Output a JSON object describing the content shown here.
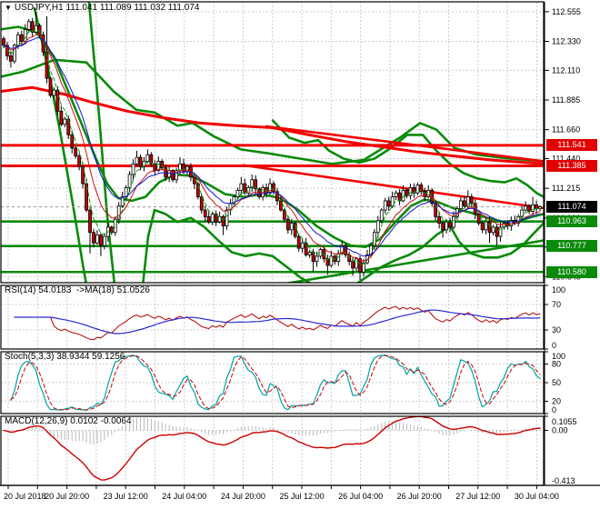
{
  "chart_data": {
    "type": "candlestick",
    "title": {
      "symbol": "USDJPY,H1",
      "o": "111.041",
      "h": "111.089",
      "l": "111.032",
      "c": "111.074"
    },
    "x_labels": [
      "20 Jul 2018",
      "20 Jul 20:00",
      "23 Jul 12:00",
      "24 Jul 04:00",
      "24 Jul 20:00",
      "25 Jul 12:00",
      "26 Jul 04:00",
      "26 Jul 20:00",
      "27 Jul 12:00",
      "30 Jul 04:00"
    ],
    "price_axis": {
      "max": 112.63,
      "min": 110.499,
      "tick_values": [
        112.555,
        112.33,
        112.11,
        111.885,
        111.66,
        111.44,
        111.215,
        110.99,
        110.77,
        110.545
      ],
      "tick_labels": [
        "112.555",
        "112.330",
        "112.110",
        "111.885",
        "111.660",
        "111.440",
        "111.215",
        "110.990",
        "110.770",
        "110.545"
      ]
    },
    "badges": [
      {
        "label": "111.541",
        "value": 111.541,
        "bg": "#e00000"
      },
      {
        "label": "111.385",
        "value": 111.385,
        "bg": "#e00000"
      },
      {
        "label": "111.074",
        "value": 111.074,
        "bg": "#000000"
      },
      {
        "label": "110.963",
        "value": 110.963,
        "bg": "#0a8a0a"
      },
      {
        "label": "110.777",
        "value": 110.777,
        "bg": "#0a8a0a"
      },
      {
        "label": "110.580",
        "value": 110.58,
        "bg": "#0a8a0a"
      }
    ],
    "levels": {
      "resistance": [
        111.541,
        111.385
      ],
      "support": [
        110.963,
        110.777,
        110.58
      ],
      "current_price": 111.074
    },
    "candles": {
      "open0": 112.35,
      "closes": [
        112.3,
        112.22,
        112.18,
        112.3,
        112.38,
        112.33,
        112.42,
        112.48,
        112.4,
        112.45,
        112.38,
        112.25,
        112.05,
        111.92,
        111.96,
        111.8,
        111.7,
        111.74,
        111.62,
        111.52,
        111.46,
        111.38,
        111.25,
        111.05,
        110.88,
        110.8,
        110.86,
        110.78,
        110.85,
        110.92,
        110.88,
        110.98,
        111.08,
        111.15,
        111.22,
        111.32,
        111.4,
        111.45,
        111.38,
        111.42,
        111.47,
        111.4,
        111.35,
        111.42,
        111.37,
        111.3,
        111.35,
        111.28,
        111.35,
        111.4,
        111.34,
        111.38,
        111.3,
        111.25,
        111.15,
        111.05,
        111.0,
        110.96,
        111.02,
        110.96,
        111.0,
        110.93,
        111.05,
        111.1,
        111.15,
        111.2,
        111.25,
        111.18,
        111.22,
        111.28,
        111.21,
        111.15,
        111.22,
        111.18,
        111.25,
        111.19,
        111.12,
        111.05,
        110.98,
        110.9,
        110.95,
        110.85,
        110.76,
        110.8,
        110.71,
        110.73,
        110.66,
        110.7,
        110.75,
        110.68,
        110.63,
        110.7,
        110.66,
        110.72,
        110.78,
        110.71,
        110.66,
        110.61,
        110.68,
        110.58,
        110.65,
        110.71,
        110.78,
        110.88,
        110.97,
        111.05,
        111.12,
        111.08,
        111.15,
        111.18,
        111.12,
        111.2,
        111.16,
        111.22,
        111.18,
        111.24,
        111.19,
        111.15,
        111.2,
        111.1,
        111.0,
        110.95,
        110.9,
        110.96,
        110.92,
        111.0,
        111.06,
        111.12,
        111.08,
        111.15,
        111.1,
        111.02,
        110.95,
        110.9,
        110.96,
        110.88,
        110.92,
        110.85,
        110.92,
        110.95,
        110.93,
        110.97,
        110.95,
        111.0,
        111.05,
        111.08,
        111.04,
        111.09,
        111.06,
        111.074
      ],
      "spike_highs": {
        "9": 112.555,
        "12": 112.52,
        "37": 111.5,
        "40": 111.51,
        "49": 111.45,
        "66": 111.3,
        "69": 111.32,
        "113": 111.25,
        "115": 111.26,
        "129": 111.2,
        "147": 111.15
      },
      "spike_lows": {
        "2": 112.13,
        "24": 110.72,
        "27": 110.7,
        "61": 110.86,
        "86": 110.58,
        "90": 110.56,
        "97": 110.55,
        "99": 110.52,
        "122": 110.84,
        "135": 110.8,
        "137": 110.78
      }
    },
    "thin_mas": [
      {
        "period": 4,
        "color": "#0b9b0b",
        "width": 1,
        "dash": "4,3"
      },
      {
        "period": 9,
        "color": "#cc1111",
        "width": 1,
        "dash": ""
      },
      {
        "period": 15,
        "color": "#1414cc",
        "width": 1,
        "dash": ""
      }
    ],
    "red_ma": [
      [
        0,
        111.95
      ],
      [
        35,
        111.98
      ],
      [
        70,
        111.93
      ],
      [
        100,
        111.87
      ],
      [
        140,
        111.8
      ],
      [
        180,
        111.75
      ],
      [
        220,
        111.71
      ],
      [
        260,
        111.69
      ],
      [
        300,
        111.675
      ],
      [
        340,
        111.62
      ],
      [
        380,
        111.57
      ],
      [
        420,
        111.53
      ],
      [
        460,
        111.49
      ],
      [
        500,
        111.46
      ],
      [
        540,
        111.43
      ],
      [
        598,
        111.4
      ]
    ],
    "red_trendlines": [
      [
        [
          293,
          111.685
        ],
        [
          598,
          111.42
        ]
      ],
      [
        [
          268,
          111.39
        ],
        [
          598,
          111.065
        ]
      ]
    ],
    "green_curves": [
      [
        [
          0,
          112.06
        ],
        [
          25,
          112.1
        ],
        [
          60,
          112.19
        ],
        [
          95,
          112.17
        ],
        [
          125,
          111.95
        ],
        [
          150,
          111.81
        ],
        [
          170,
          111.79
        ],
        [
          195,
          111.69
        ],
        [
          212,
          111.71
        ],
        [
          235,
          111.61
        ],
        [
          265,
          111.51
        ],
        [
          295,
          111.48
        ],
        [
          330,
          111.44
        ],
        [
          365,
          111.4
        ],
        [
          400,
          111.43
        ],
        [
          440,
          111.6
        ],
        [
          462,
          111.71
        ],
        [
          480,
          111.66
        ],
        [
          500,
          111.52
        ],
        [
          525,
          111.47
        ],
        [
          560,
          111.44
        ],
        [
          598,
          111.42
        ]
      ],
      [
        [
          0,
          112.42
        ],
        [
          20,
          112.44
        ],
        [
          40,
          112.4
        ],
        [
          60,
          112.2
        ],
        [
          75,
          111.95
        ],
        [
          90,
          111.7
        ],
        [
          105,
          111.45
        ],
        [
          118,
          111.25
        ],
        [
          130,
          111.14
        ],
        [
          145,
          111.12
        ],
        [
          160,
          111.15
        ],
        [
          175,
          111.26
        ],
        [
          192,
          111.32
        ],
        [
          210,
          111.31
        ],
        [
          228,
          111.25
        ],
        [
          248,
          111.17
        ],
        [
          268,
          111.15
        ],
        [
          288,
          111.17
        ],
        [
          308,
          111.14
        ],
        [
          328,
          111.05
        ],
        [
          348,
          110.93
        ],
        [
          368,
          110.84
        ],
        [
          386,
          110.78
        ],
        [
          402,
          110.77
        ],
        [
          418,
          110.83
        ],
        [
          435,
          110.96
        ],
        [
          452,
          111.08
        ],
        [
          467,
          111.13
        ],
        [
          482,
          111.11
        ],
        [
          500,
          111.06
        ],
        [
          518,
          111.03
        ],
        [
          536,
          110.99
        ],
        [
          554,
          110.96
        ],
        [
          572,
          110.97
        ],
        [
          586,
          111.0
        ],
        [
          598,
          111.02
        ]
      ],
      [
        [
          300,
          111.73
        ],
        [
          318,
          111.6
        ],
        [
          335,
          111.56
        ],
        [
          350,
          111.58
        ],
        [
          362,
          111.5
        ],
        [
          378,
          111.44
        ],
        [
          395,
          111.41
        ],
        [
          412,
          111.44
        ],
        [
          430,
          111.52
        ],
        [
          448,
          111.62
        ],
        [
          465,
          111.62
        ],
        [
          480,
          111.5
        ],
        [
          495,
          111.4
        ],
        [
          510,
          111.33
        ],
        [
          525,
          111.29
        ],
        [
          540,
          111.27
        ],
        [
          555,
          111.26
        ],
        [
          568,
          111.29
        ],
        [
          580,
          111.24
        ],
        [
          590,
          111.18
        ],
        [
          598,
          111.15
        ]
      ],
      [
        [
          38,
          112.58
        ],
        [
          52,
          112.15
        ],
        [
          66,
          111.65
        ],
        [
          80,
          111.1
        ],
        [
          92,
          110.6
        ],
        [
          102,
          110.22
        ],
        [
          108,
          110.05
        ]
      ],
      [
        [
          98,
          112.62
        ],
        [
          108,
          111.85
        ],
        [
          118,
          111.0
        ],
        [
          128,
          110.35
        ],
        [
          138,
          110.06
        ],
        [
          147,
          110.02
        ],
        [
          155,
          110.35
        ],
        [
          163,
          110.85
        ],
        [
          170,
          111.05
        ],
        [
          182,
          111.02
        ],
        [
          195,
          110.96
        ],
        [
          210,
          110.99
        ],
        [
          225,
          110.92
        ],
        [
          240,
          110.82
        ],
        [
          255,
          110.73
        ],
        [
          270,
          110.7
        ],
        [
          285,
          110.72
        ],
        [
          300,
          110.7
        ],
        [
          315,
          110.62
        ],
        [
          330,
          110.54
        ],
        [
          345,
          110.48
        ],
        [
          360,
          110.45
        ],
        [
          375,
          110.44
        ],
        [
          390,
          110.48
        ],
        [
          405,
          110.55
        ],
        [
          420,
          110.62
        ],
        [
          435,
          110.67
        ],
        [
          450,
          110.71
        ],
        [
          465,
          110.77
        ],
        [
          480,
          110.86
        ],
        [
          495,
          110.93
        ],
        [
          505,
          110.81
        ],
        [
          518,
          110.72
        ],
        [
          532,
          110.69
        ],
        [
          548,
          110.69
        ],
        [
          562,
          110.72
        ],
        [
          576,
          110.79
        ],
        [
          588,
          110.88
        ],
        [
          598,
          110.95
        ]
      ],
      [
        [
          295,
          110.47
        ],
        [
          598,
          110.82
        ]
      ]
    ],
    "panels": {
      "rsi": {
        "label": "RSI(14) 54.0183  ->MA(18) 51.0526",
        "period": 14,
        "ma_period": 18,
        "levels": [
          70,
          30
        ],
        "scale_labels": [
          {
            "text": "100",
            "v": 100
          },
          {
            "text": "70",
            "v": 70
          },
          {
            "text": "30",
            "v": 30
          },
          {
            "text": "0",
            "v": 0
          }
        ],
        "line_color": "#b30000",
        "ma_color": "#2a2ad0"
      },
      "stoch": {
        "label": "Stoch(5,3,3) 38.9344 59.1256",
        "levels": [
          80,
          50,
          20
        ],
        "scale_labels": [
          {
            "text": "100",
            "v": 100
          },
          {
            "text": "80",
            "v": 80
          },
          {
            "text": "50",
            "v": 50
          },
          {
            "text": "20",
            "v": 20
          },
          {
            "text": "0",
            "v": 0
          }
        ],
        "k_color": "#00a2a2",
        "d_color": "#cc0000"
      },
      "macd": {
        "label": "MACD(12,26,9) 0.0102 -0.0064",
        "max": 0.1055,
        "min": -0.413,
        "scale_labels": [
          {
            "text": "0.1055",
            "v": 0.1055
          },
          {
            "text": "0.00",
            "v": 0.0
          },
          {
            "text": "-0.413",
            "v": -0.413
          }
        ],
        "bar_color": "#b8b8b8",
        "line_color": "#cc0000"
      }
    },
    "colors": {
      "bull_fill": "#ffffff",
      "bear_fill": "#c40000",
      "candle_border": "#000000",
      "grid": "#cdcdcd",
      "level_red": "#f00000",
      "level_green": "#0a8a0a",
      "thick_red": "#f00000",
      "thick_green": "#0a8a0a",
      "current_line": "#999999",
      "axis_text": "#000000"
    }
  }
}
